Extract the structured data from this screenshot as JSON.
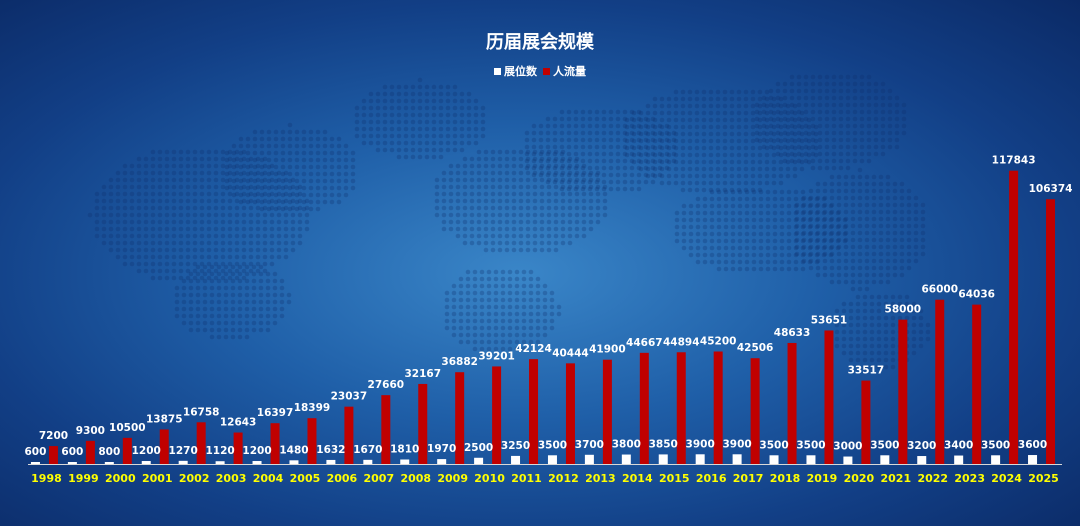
{
  "chart_data": {
    "type": "bar",
    "title": "历届展会规模",
    "categories": [
      "1998",
      "1999",
      "2000",
      "2001",
      "2002",
      "2003",
      "2004",
      "2005",
      "2006",
      "2007",
      "2008",
      "2009",
      "2010",
      "2011",
      "2012",
      "2013",
      "2014",
      "2015",
      "2016",
      "2017",
      "2018",
      "2019",
      "2020",
      "2021",
      "2022",
      "2023",
      "2024",
      "2025"
    ],
    "series": [
      {
        "name": "展位数",
        "color": "#ffffff",
        "values": [
          600,
          600,
          800,
          1200,
          1270,
          1120,
          1200,
          1480,
          1632,
          1670,
          1810,
          1970,
          2500,
          3250,
          3500,
          3700,
          3800,
          3850,
          3900,
          3900,
          3500,
          3500,
          3000,
          3500,
          3200,
          3400,
          3500,
          3600
        ]
      },
      {
        "name": "人流量",
        "color": "#c00000",
        "values": [
          7200,
          9300,
          10500,
          13875,
          16758,
          12643,
          16397,
          18399,
          23037,
          27660,
          32167,
          36882,
          39201,
          42124,
          40444,
          41900,
          44667,
          44894,
          45200,
          42506,
          48633,
          53651,
          33517,
          58000,
          66000,
          64036,
          117843,
          106374
        ]
      }
    ],
    "ylim": [
      0,
      135000
    ],
    "legend_position": "top-center",
    "tick_label_color": "#ffff00",
    "label_color": "#ffffff"
  }
}
